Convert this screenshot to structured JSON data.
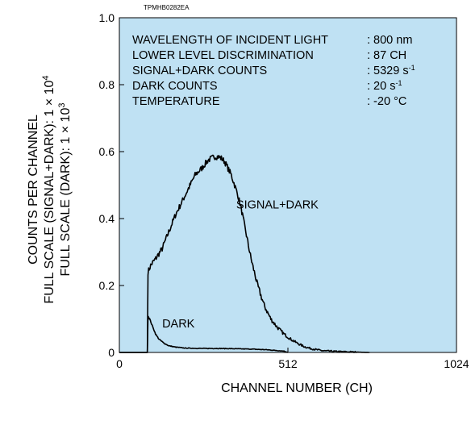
{
  "chart_data": {
    "type": "line",
    "figure_code": "TPMHB0282EA",
    "xlabel": "CHANNEL NUMBER (CH)",
    "ylabel_lines": [
      "COUNTS PER CHANNEL",
      "FULL SCALE (SIGNAL+DARK): 1 × 10",
      "FULL SCALE (DARK): 1 × 10"
    ],
    "ylabel_exponents": [
      "4",
      "3"
    ],
    "xlim": [
      0,
      1024
    ],
    "ylim": [
      0,
      1.0
    ],
    "x_ticks": [
      0,
      512,
      1024
    ],
    "x_tick_labels": [
      "0",
      "512",
      "1024"
    ],
    "y_ticks": [
      0,
      0.2,
      0.4,
      0.6,
      0.8,
      1.0
    ],
    "y_tick_labels": [
      "0",
      "0.2",
      "0.4",
      "0.6",
      "0.8",
      "1.0"
    ],
    "background_color": "#bfe1f3",
    "line_color": "#000000",
    "info": [
      {
        "label": "WAVELENGTH OF INCIDENT LIGHT",
        "value": ": 800 nm",
        "sup": ""
      },
      {
        "label": "LOWER LEVEL DISCRIMINATION",
        "value": ": 87 CH",
        "sup": ""
      },
      {
        "label": "SIGNAL+DARK COUNTS",
        "value": ": 5329 s",
        "sup": "-1"
      },
      {
        "label": "DARK COUNTS",
        "value": ": 20 s",
        "sup": "-1"
      },
      {
        "label": "TEMPERATURE",
        "value": ": -20 °C",
        "sup": ""
      }
    ],
    "series": [
      {
        "name": "SIGNAL+DARK",
        "x": [
          0,
          85,
          86,
          87,
          95,
          110,
          130,
          150,
          170,
          190,
          210,
          230,
          250,
          270,
          290,
          300,
          310,
          320,
          330,
          340,
          350,
          360,
          370,
          380,
          390,
          400,
          420,
          440,
          460,
          480,
          500,
          520,
          540,
          560,
          580,
          600,
          620,
          650,
          680,
          720,
          760
        ],
        "y": [
          0,
          0,
          0.12,
          0.24,
          0.26,
          0.28,
          0.31,
          0.36,
          0.41,
          0.45,
          0.49,
          0.53,
          0.55,
          0.575,
          0.585,
          0.585,
          0.58,
          0.57,
          0.55,
          0.53,
          0.5,
          0.47,
          0.43,
          0.38,
          0.33,
          0.28,
          0.2,
          0.14,
          0.1,
          0.075,
          0.055,
          0.04,
          0.028,
          0.018,
          0.012,
          0.008,
          0.005,
          0.003,
          0.002,
          0.001,
          0
        ],
        "label_position": [
          355,
          0.43
        ]
      },
      {
        "name": "DARK",
        "x": [
          0,
          85,
          86,
          87,
          92,
          100,
          110,
          120,
          135,
          150,
          170,
          200,
          250,
          300,
          350,
          400,
          450,
          500,
          512
        ],
        "y": [
          0,
          0,
          0.05,
          0.11,
          0.1,
          0.08,
          0.055,
          0.04,
          0.028,
          0.02,
          0.016,
          0.013,
          0.012,
          0.012,
          0.011,
          0.01,
          0.008,
          0.004,
          0
        ],
        "label_position": [
          130,
          0.075
        ]
      }
    ]
  }
}
